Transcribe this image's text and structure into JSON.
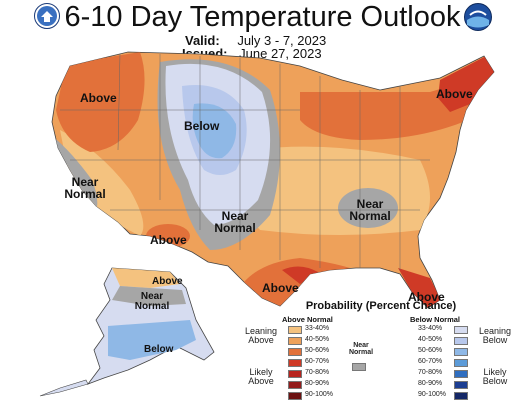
{
  "title": "6-10 Day Temperature Outlook",
  "valid": {
    "label": "Valid:",
    "value": "July 3 - 7, 2023"
  },
  "issued": {
    "label": "Issued:",
    "value": "June 27, 2023"
  },
  "map_labels": {
    "above_nw": "Above",
    "below_north": "Below",
    "near_normal_west": "Near Normal",
    "near_normal_central": "Near Normal",
    "near_normal_southeast": "Near Normal",
    "above_ne": "Above",
    "above_southwest": "Above",
    "above_gulf": "Above",
    "above_florida": "Above",
    "ak_above": "Above",
    "ak_near_normal": "Near Normal",
    "ak_below": "Below"
  },
  "legend": {
    "title": "Probability (Percent Chance)",
    "above_header": "Above Normal",
    "below_header": "Below Normal",
    "near_header": "Near Normal",
    "leaning_above": "Leaning Above",
    "likely_above": "Likely Above",
    "leaning_below": "Leaning Below",
    "likely_below": "Likely Below",
    "ranges": [
      "33-40%",
      "40-50%",
      "50-60%",
      "60-70%",
      "70-80%",
      "80-90%",
      "90-100%"
    ],
    "above_colors": [
      "#f4c27f",
      "#eea15a",
      "#e2713a",
      "#cf3a26",
      "#b8241e",
      "#931c1c",
      "#6b1212"
    ],
    "below_colors": [
      "#d6dcf0",
      "#b8c8ec",
      "#8fb8e6",
      "#5c9bd8",
      "#2f6ec0",
      "#1c3e92",
      "#142766"
    ],
    "near_color": "#a6a6a6"
  },
  "colors": {
    "above_light": "#f4c27f",
    "above_mid": "#eea15a",
    "above_strong": "#e2713a",
    "above_dark": "#cf3a26",
    "near": "#a6a6a6",
    "below_light": "#d6dcf0",
    "below_mid": "#b8c8ec",
    "below_strong": "#8fb8e6"
  },
  "icons": {
    "left_logo": "noaa-commerce-seal-icon",
    "right_logo": "noaa-logo-icon"
  }
}
